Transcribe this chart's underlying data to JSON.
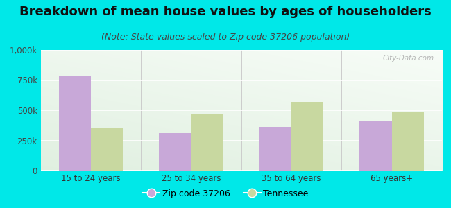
{
  "title": "Breakdown of mean house values by ages of householders",
  "subtitle": "(Note: State values scaled to Zip code 37206 population)",
  "categories": [
    "15 to 24 years",
    "25 to 34 years",
    "35 to 64 years",
    "65 years+"
  ],
  "zip_values": [
    780000,
    310000,
    360000,
    415000
  ],
  "state_values": [
    355000,
    470000,
    570000,
    480000
  ],
  "zip_color": "#c8a8d8",
  "state_color": "#c8d8a0",
  "background_outer": "#00e8e8",
  "ylim": [
    0,
    1000000
  ],
  "yticks": [
    0,
    250000,
    500000,
    750000,
    1000000
  ],
  "ytick_labels": [
    "0",
    "250k",
    "500k",
    "750k",
    "1,000k"
  ],
  "legend_zip_label": "Zip code 37206",
  "legend_state_label": "Tennessee",
  "bar_width": 0.32,
  "title_fontsize": 13,
  "subtitle_fontsize": 9,
  "watermark": "City-Data.com"
}
